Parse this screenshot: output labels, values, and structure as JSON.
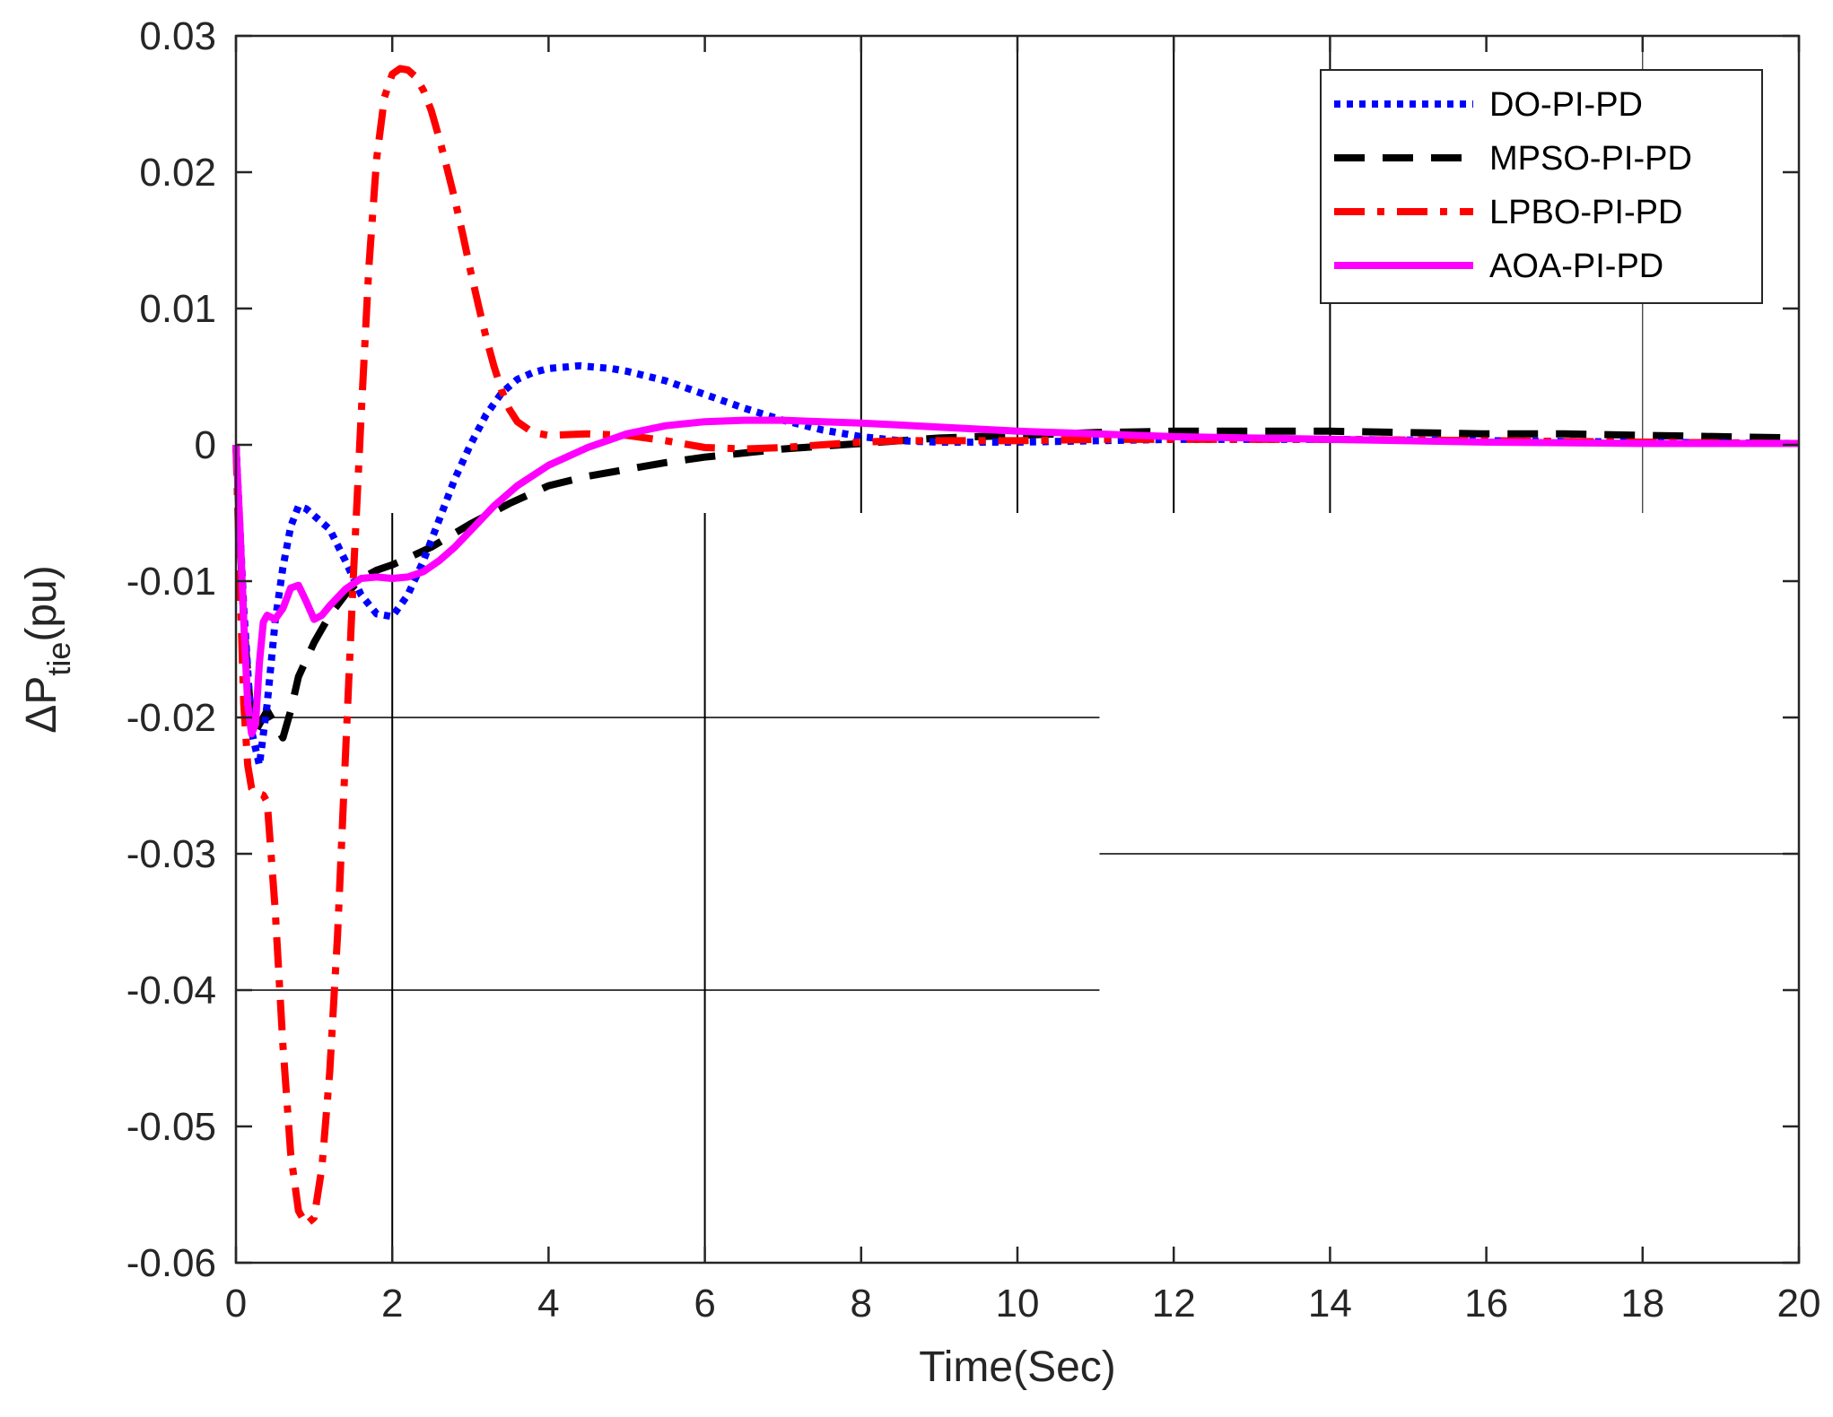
{
  "chart_data": {
    "type": "line",
    "title": "",
    "xlabel": "Time(Sec)",
    "ylabel_main": "ΔP",
    "ylabel_sub": "tie",
    "ylabel_unit": "(pu)",
    "xlim": [
      0,
      20
    ],
    "ylim": [
      -0.06,
      0.03
    ],
    "xticks": [
      0,
      2,
      4,
      6,
      8,
      10,
      12,
      14,
      16,
      18,
      20
    ],
    "xtick_labels": [
      "0",
      "2",
      "4",
      "6",
      "8",
      "10",
      "12",
      "14",
      "16",
      "18",
      "20"
    ],
    "yticks": [
      0.03,
      0.02,
      0.01,
      0,
      -0.01,
      -0.02,
      -0.03,
      -0.04,
      -0.05,
      -0.06
    ],
    "ytick_labels": [
      "0.03",
      "0.02",
      "0.01",
      "0",
      "-0.01",
      "-0.02",
      "-0.03",
      "-0.04",
      "-0.05",
      "-0.06"
    ],
    "legend_position": "top-right",
    "series": [
      {
        "name": "DO-PI-PD",
        "color": "#0000ff",
        "style": "dotted",
        "x": [
          0,
          0.1,
          0.2,
          0.3,
          0.4,
          0.5,
          0.6,
          0.7,
          0.8,
          0.9,
          1.0,
          1.2,
          1.4,
          1.6,
          1.8,
          2.0,
          2.2,
          2.4,
          2.6,
          2.8,
          3.0,
          3.2,
          3.4,
          3.6,
          3.8,
          4.0,
          4.2,
          4.4,
          4.6,
          4.8,
          5.0,
          5.5,
          6.0,
          6.5,
          7.0,
          7.5,
          8.0,
          8.5,
          9.0,
          10.0,
          11.0,
          12.0,
          13.0,
          14.0,
          16.0,
          18.0,
          20.0
        ],
        "y": [
          0,
          -0.012,
          -0.021,
          -0.0235,
          -0.019,
          -0.013,
          -0.009,
          -0.006,
          -0.0045,
          -0.0047,
          -0.0052,
          -0.0062,
          -0.0085,
          -0.011,
          -0.0124,
          -0.0126,
          -0.011,
          -0.0085,
          -0.0055,
          -0.0025,
          0,
          0.0022,
          0.0038,
          0.0048,
          0.0053,
          0.0056,
          0.0057,
          0.0058,
          0.0057,
          0.0056,
          0.0054,
          0.0047,
          0.0037,
          0.0027,
          0.0018,
          0.0011,
          0.0006,
          0.0003,
          0.0002,
          0.0002,
          0.0003,
          0.0004,
          0.0004,
          0.0004,
          0.0003,
          0.0002,
          0.0001
        ]
      },
      {
        "name": "MPSO-PI-PD",
        "color": "#000000",
        "style": "dashed",
        "x": [
          0,
          0.1,
          0.2,
          0.25,
          0.3,
          0.4,
          0.5,
          0.6,
          0.7,
          0.8,
          1.0,
          1.2,
          1.4,
          1.6,
          1.8,
          2.0,
          2.2,
          2.5,
          3.0,
          3.5,
          4.0,
          4.5,
          5.0,
          5.5,
          6.0,
          6.5,
          7.0,
          7.5,
          8.0,
          8.5,
          9.0,
          10.0,
          11.0,
          12.0,
          13.0,
          14.0,
          15.0,
          16.0,
          17.0,
          18.0,
          19.0,
          20.0
        ],
        "y": [
          0,
          -0.013,
          -0.0205,
          -0.021,
          -0.0205,
          -0.0195,
          -0.0205,
          -0.0215,
          -0.0195,
          -0.017,
          -0.0145,
          -0.0125,
          -0.011,
          -0.0098,
          -0.0092,
          -0.0088,
          -0.0083,
          -0.0075,
          -0.0058,
          -0.0043,
          -0.003,
          -0.0023,
          -0.0018,
          -0.0013,
          -0.0009,
          -0.0006,
          -0.0003,
          -0.0001,
          0.0001,
          0.0003,
          0.0005,
          0.0007,
          0.0009,
          0.001,
          0.001,
          0.001,
          0.0009,
          0.0008,
          0.0008,
          0.0007,
          0.0006,
          0.0005
        ]
      },
      {
        "name": "LPBO-PI-PD",
        "color": "#ff0000",
        "style": "dashdot",
        "x": [
          0,
          0.05,
          0.1,
          0.15,
          0.2,
          0.25,
          0.3,
          0.35,
          0.4,
          0.5,
          0.6,
          0.7,
          0.8,
          0.9,
          1.0,
          1.1,
          1.2,
          1.3,
          1.4,
          1.5,
          1.6,
          1.7,
          1.8,
          1.9,
          2.0,
          2.1,
          2.2,
          2.3,
          2.4,
          2.5,
          2.6,
          2.7,
          2.8,
          2.9,
          3.0,
          3.1,
          3.2,
          3.3,
          3.4,
          3.5,
          3.6,
          3.8,
          4.0,
          4.5,
          5.0,
          5.5,
          6.0,
          6.5,
          7.0,
          7.5,
          8.0,
          8.5,
          9.0,
          10.0,
          11.0,
          12.0,
          13.0,
          14.0,
          16.0,
          18.0,
          20.0
        ],
        "y": [
          0,
          -0.01,
          -0.019,
          -0.0235,
          -0.0252,
          -0.0256,
          -0.0256,
          -0.0257,
          -0.0262,
          -0.034,
          -0.044,
          -0.052,
          -0.0562,
          -0.0572,
          -0.0567,
          -0.053,
          -0.046,
          -0.036,
          -0.023,
          -0.01,
          0.002,
          0.013,
          0.021,
          0.0255,
          0.0272,
          0.0276,
          0.0275,
          0.027,
          0.026,
          0.0245,
          0.0225,
          0.0203,
          0.018,
          0.0155,
          0.0128,
          0.0103,
          0.0079,
          0.0058,
          0.004,
          0.0026,
          0.0017,
          0.0009,
          0.0007,
          0.0008,
          0.0007,
          0.0003,
          -0.0002,
          -0.0003,
          -0.0002,
          0,
          0.0002,
          0.0003,
          0.0003,
          0.0003,
          0.0004,
          0.0004,
          0.0004,
          0.0004,
          0.0003,
          0.0002,
          0.0001
        ]
      },
      {
        "name": "AOA-PI-PD",
        "color": "#ff00ff",
        "style": "solid",
        "x": [
          0,
          0.05,
          0.1,
          0.15,
          0.2,
          0.25,
          0.3,
          0.35,
          0.4,
          0.5,
          0.6,
          0.7,
          0.8,
          0.9,
          1.0,
          1.1,
          1.2,
          1.4,
          1.6,
          1.8,
          2.0,
          2.2,
          2.4,
          2.6,
          2.8,
          3.0,
          3.3,
          3.6,
          4.0,
          4.5,
          5.0,
          5.5,
          6.0,
          6.5,
          7.0,
          7.5,
          8.0,
          9.0,
          10.0,
          11.0,
          12.0,
          13.0,
          14.0,
          16.0,
          18.0,
          20.0
        ],
        "y": [
          0,
          -0.006,
          -0.013,
          -0.019,
          -0.0212,
          -0.0205,
          -0.016,
          -0.013,
          -0.0125,
          -0.0128,
          -0.012,
          -0.0105,
          -0.0103,
          -0.0115,
          -0.0128,
          -0.0125,
          -0.0118,
          -0.0106,
          -0.0098,
          -0.0097,
          -0.0098,
          -0.0097,
          -0.0093,
          -0.0085,
          -0.0075,
          -0.0063,
          -0.0045,
          -0.003,
          -0.0015,
          -0.0002,
          0.0008,
          0.0014,
          0.0017,
          0.0018,
          0.0018,
          0.0017,
          0.0016,
          0.0013,
          0.001,
          0.0008,
          0.0006,
          0.0005,
          0.0004,
          0.0002,
          0.0001,
          0.0001
        ]
      }
    ]
  }
}
